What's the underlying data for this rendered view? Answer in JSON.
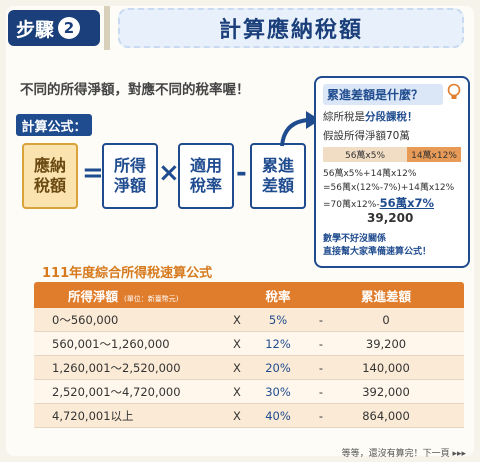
{
  "header": {
    "step_label": "步驟",
    "step_number": "2",
    "title_prefix": "計算",
    "title_highlight": "應納稅額"
  },
  "intro_text": "不同的所得淨額，對應不同的稅率喔！",
  "formula": {
    "tag": "計算公式：",
    "box1": "應納\n稅額",
    "eq": "=",
    "box2": "所得\n淨額",
    "times": "×",
    "box3": "適用\n稅率",
    "minus": "-",
    "box4": "累進\n差額"
  },
  "callout": {
    "title": "累進差額是什麼？",
    "line1_pre": "綜所稅是",
    "line1_bold": "分段課稅！",
    "line2": "假設所得淨額70萬",
    "split_a": "56萬x5%",
    "split_b": "14萬x12%",
    "calc1": "56萬x5%+14萬x12%",
    "calc2": "=56萬x(12%-7%)+14萬x12%",
    "calc3_pre": "=70萬x12%-",
    "calc3_big": "56萬x7%",
    "result": "39,200",
    "tip1": "數學不好沒關係",
    "tip2": "直接幫大家準備速算公式！"
  },
  "table": {
    "title": "111年度綜合所得稅速算公式",
    "headers": {
      "income": "所得淨額",
      "unit": "(單位：新臺幣元)",
      "rate": "稅率",
      "deduction": "累進差額"
    },
    "rows": [
      {
        "income": "0～560,000",
        "x": "X",
        "rate": "5%",
        "minus": "-",
        "deduction": "0"
      },
      {
        "income": "560,001～1,260,000",
        "x": "X",
        "rate": "12%",
        "minus": "-",
        "deduction": "39,200"
      },
      {
        "income": "1,260,001～2,520,000",
        "x": "X",
        "rate": "20%",
        "minus": "-",
        "deduction": "140,000"
      },
      {
        "income": "2,520,001～4,720,000",
        "x": "X",
        "rate": "30%",
        "minus": "-",
        "deduction": "392,000"
      },
      {
        "income": "4,720,001以上",
        "x": "X",
        "rate": "40%",
        "minus": "-",
        "deduction": "864,000"
      }
    ]
  },
  "footer": "等等，還沒有算完！下一頁 ▸▸▸"
}
